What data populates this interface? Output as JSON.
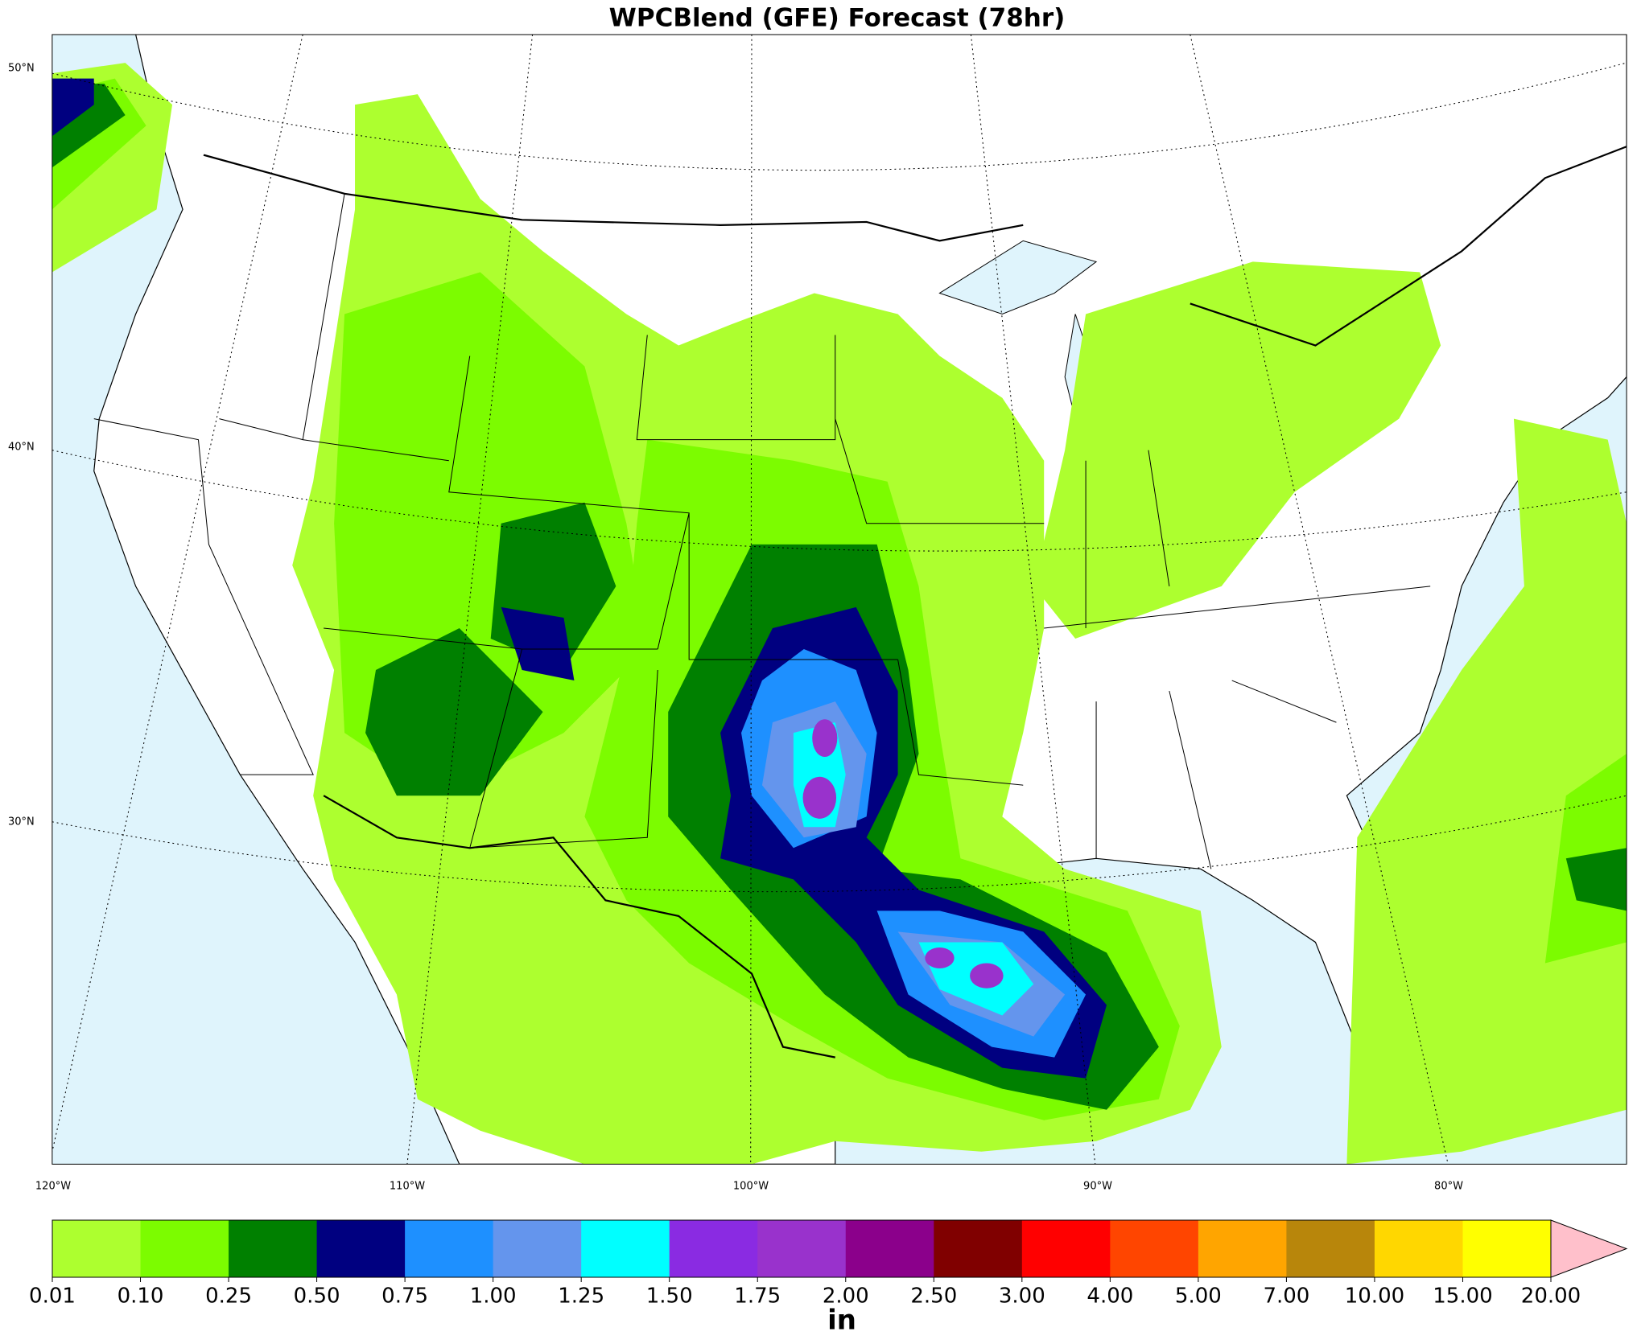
{
  "title": "WPCBlend (GFE) Forecast (78hr)",
  "map": {
    "lat_labels": [
      "50°N",
      "40°N",
      "30°N"
    ],
    "lon_labels": [
      "120°W",
      "110°W",
      "100°W",
      "90°W",
      "80°W"
    ]
  },
  "colorbar": {
    "ticks": [
      0.01,
      {
        "value": 0.1,
        "label": "0.10"
      },
      0.25,
      {
        "value": 0.5,
        "label": "0.50"
      },
      0.75,
      {
        "value": 1,
        "label": "1.00"
      },
      1.25,
      {
        "value": 1.5,
        "label": "1.50"
      },
      1.75,
      {
        "value": 2,
        "label": "2.00"
      },
      {
        "value": 2.5,
        "label": "2.50"
      },
      {
        "value": 3,
        "label": "3.00"
      },
      {
        "value": 4,
        "label": "4.00"
      },
      {
        "value": 5,
        "label": "5.00"
      },
      {
        "value": 7,
        "label": "7.00"
      },
      {
        "value": 10,
        "label": "10.00"
      },
      {
        "value": 15,
        "label": "15.00"
      },
      {
        "value": 20,
        "label": "20.00"
      }
    ],
    "colors": [
      "#adff2f",
      "#7cfc00",
      "#008000",
      "#000080",
      "#1e90ff",
      "#6495ed",
      "#00ffff",
      "#8a2be2",
      "#9932cc",
      "#8b008b",
      "#800000",
      "#ff0000",
      "#ff4500",
      "#ffa500",
      "#b8860b",
      "#ffd700",
      "#ffff00"
    ],
    "extend_color": "#ffc0cb",
    "label": "in"
  }
}
